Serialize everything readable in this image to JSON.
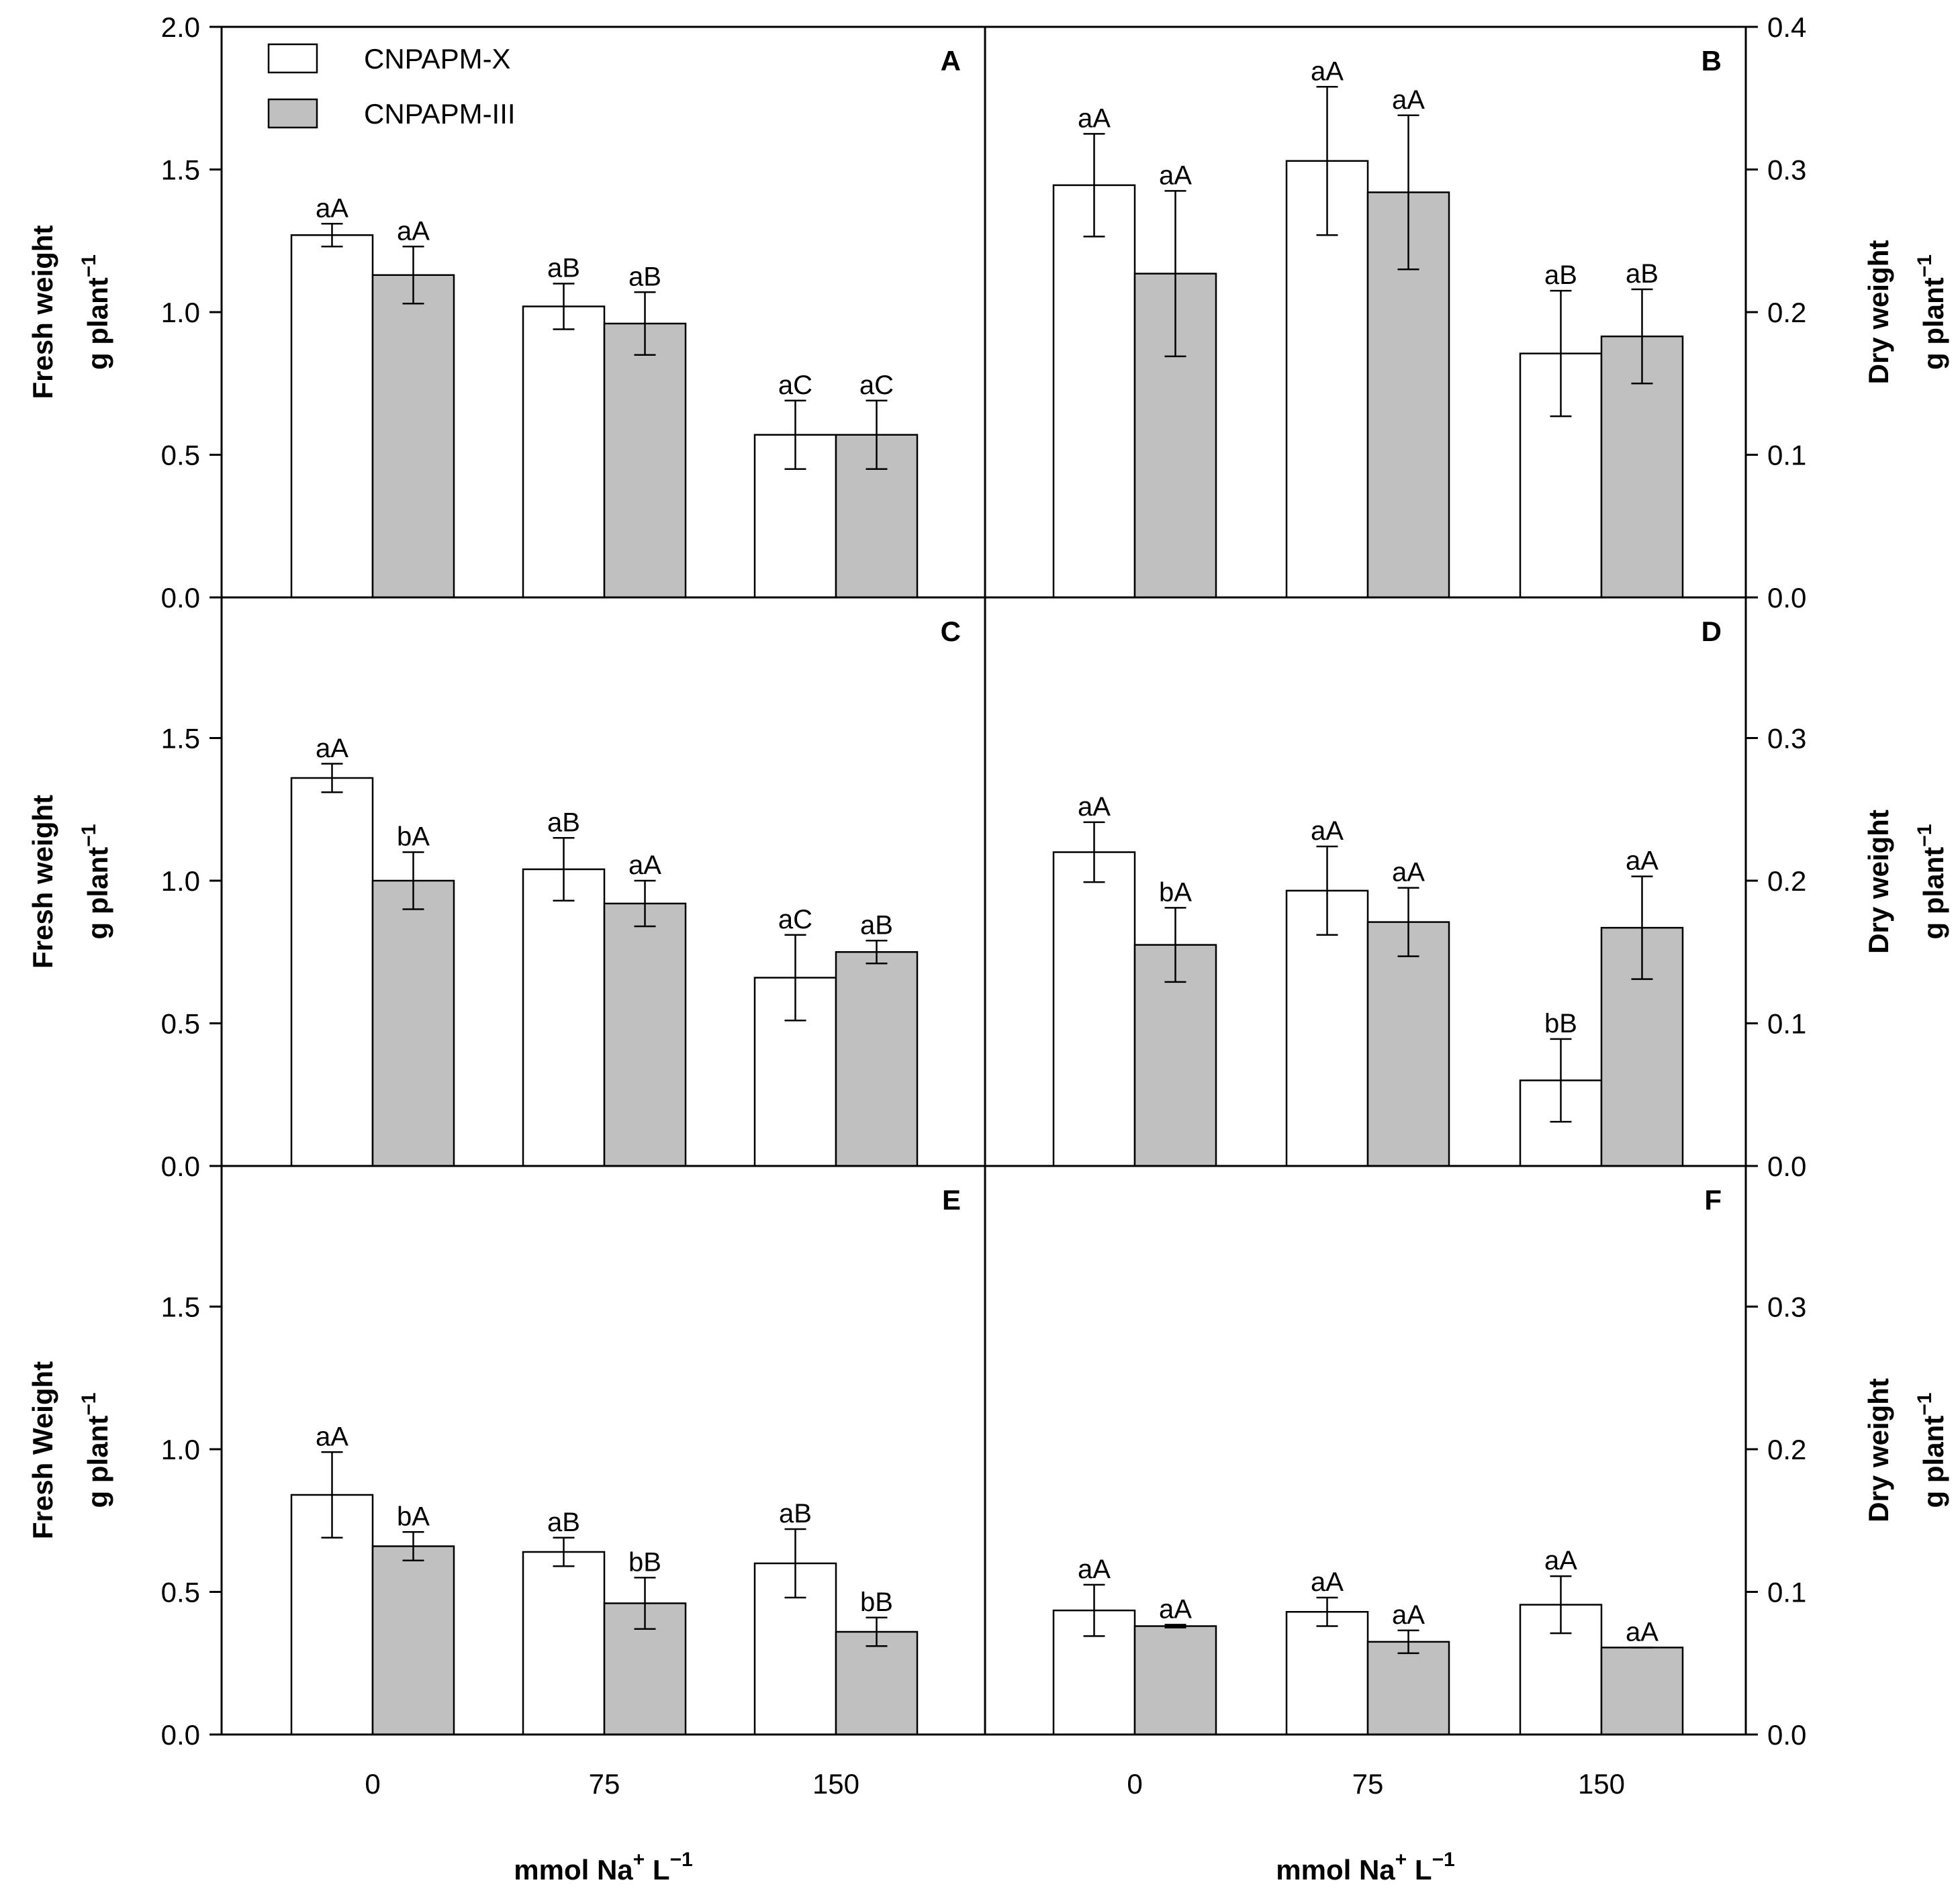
{
  "chart_data": {
    "type": "bar",
    "layout": "3x2 grid of bar-chart panels sharing x categories",
    "legend": {
      "position": "top-left of panel A",
      "entries": [
        {
          "name": "CNPAPM-X",
          "color": "#ffffff"
        },
        {
          "name": "CNPAPM-III",
          "color": "#c0c0c0"
        }
      ]
    },
    "categories": [
      "0",
      "75",
      "150"
    ],
    "x_tick_labels": [
      "0",
      "75",
      "150"
    ],
    "xlabel": {
      "main": "mmol Na",
      "sup1": "+",
      "unit": " L",
      "sup2": "−1"
    },
    "left_axis": {
      "ylabel_line1": [
        "Fresh weight",
        "Fresh weight",
        "Fresh Weight"
      ],
      "ylabel_line2": "g plant",
      "ylabel_sup": "−1",
      "ylim": [
        0,
        2.0
      ],
      "ticks_top_row": [
        "0.0",
        "0.5",
        "1.0",
        "1.5",
        "2.0"
      ],
      "ticks": [
        "0.0",
        "0.5",
        "1.0",
        "1.5"
      ]
    },
    "right_axis": {
      "ylabel_line1": "Dry weight",
      "ylabel_line2": "g plant",
      "ylabel_sup": "−1",
      "ylim": [
        0,
        0.4
      ],
      "ticks_top_row": [
        "0.0",
        "0.1",
        "0.2",
        "0.3",
        "0.4"
      ],
      "ticks": [
        "0.0",
        "0.1",
        "0.2",
        "0.3"
      ]
    },
    "panels": [
      {
        "id": "A",
        "axis": "left",
        "ylim": [
          0,
          2.0
        ],
        "series": [
          {
            "name": "CNPAPM-X",
            "values": [
              1.27,
              1.02,
              0.57
            ],
            "errors": [
              0.04,
              0.08,
              0.12
            ],
            "labels": [
              "aA",
              "aB",
              "aC"
            ]
          },
          {
            "name": "CNPAPM-III",
            "values": [
              1.13,
              0.96,
              0.57
            ],
            "errors": [
              0.1,
              0.11,
              0.12
            ],
            "labels": [
              "aA",
              "aB",
              "aC"
            ]
          }
        ]
      },
      {
        "id": "B",
        "axis": "right",
        "ylim": [
          0,
          0.4
        ],
        "series": [
          {
            "name": "CNPAPM-X",
            "values": [
              0.289,
              0.306,
              0.171
            ],
            "errors": [
              0.036,
              0.052,
              0.044
            ],
            "labels": [
              "aA",
              "aA",
              "aB"
            ]
          },
          {
            "name": "CNPAPM-III",
            "values": [
              0.227,
              0.284,
              0.183
            ],
            "errors": [
              0.058,
              0.054,
              0.033
            ],
            "labels": [
              "aA",
              "aA",
              "aB"
            ]
          }
        ]
      },
      {
        "id": "C",
        "axis": "left",
        "ylim": [
          0,
          2.0
        ],
        "series": [
          {
            "name": "CNPAPM-X",
            "values": [
              1.36,
              1.04,
              0.66
            ],
            "errors": [
              0.05,
              0.11,
              0.15
            ],
            "labels": [
              "aA",
              "aB",
              "aC"
            ]
          },
          {
            "name": "CNPAPM-III",
            "values": [
              1.0,
              0.92,
              0.75
            ],
            "errors": [
              0.1,
              0.08,
              0.04
            ],
            "labels": [
              "bA",
              "aA",
              "aB"
            ]
          }
        ]
      },
      {
        "id": "D",
        "axis": "right",
        "ylim": [
          0,
          0.4
        ],
        "series": [
          {
            "name": "CNPAPM-X",
            "values": [
              0.22,
              0.193,
              0.06
            ],
            "errors": [
              0.021,
              0.031,
              0.029
            ],
            "labels": [
              "aA",
              "aA",
              "bB"
            ]
          },
          {
            "name": "CNPAPM-III",
            "values": [
              0.155,
              0.171,
              0.167
            ],
            "errors": [
              0.026,
              0.024,
              0.036
            ],
            "labels": [
              "bA",
              "aA",
              "aA"
            ]
          }
        ]
      },
      {
        "id": "E",
        "axis": "left",
        "ylim": [
          0,
          2.0
        ],
        "series": [
          {
            "name": "CNPAPM-X",
            "values": [
              0.84,
              0.64,
              0.6
            ],
            "errors": [
              0.15,
              0.05,
              0.12
            ],
            "labels": [
              "aA",
              "aB",
              "aB"
            ]
          },
          {
            "name": "CNPAPM-III",
            "values": [
              0.66,
              0.46,
              0.36
            ],
            "errors": [
              0.05,
              0.09,
              0.05
            ],
            "labels": [
              "bA",
              "bB",
              "bB"
            ]
          }
        ]
      },
      {
        "id": "F",
        "axis": "right",
        "ylim": [
          0,
          0.4
        ],
        "series": [
          {
            "name": "CNPAPM-X",
            "values": [
              0.087,
              0.086,
              0.091
            ],
            "errors": [
              0.018,
              0.01,
              0.02
            ],
            "labels": [
              "aA",
              "aA",
              "aA"
            ]
          },
          {
            "name": "CNPAPM-III",
            "values": [
              0.076,
              0.065,
              0.061
            ],
            "errors": [
              0.001,
              0.008,
              0.0
            ],
            "labels": [
              "aA",
              "aA",
              "aA"
            ]
          }
        ]
      }
    ]
  }
}
